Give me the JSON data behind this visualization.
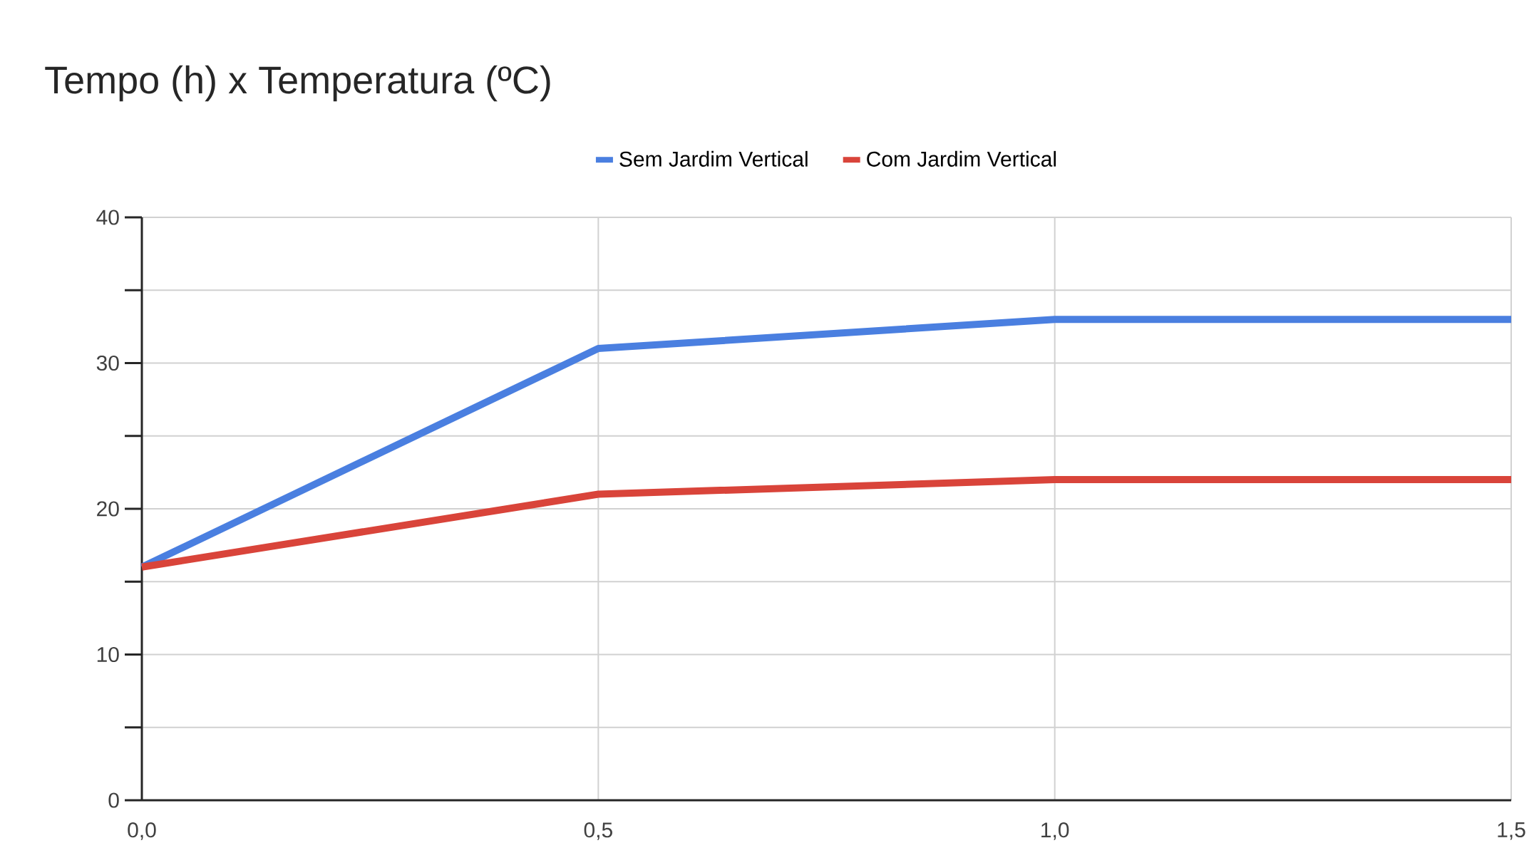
{
  "chart_data": {
    "type": "line",
    "title": "Tempo (h) x Temperatura (ºC)",
    "x": [
      0,
      0.5,
      1.0,
      1.5
    ],
    "series": [
      {
        "name": "Sem Jardim Vertical",
        "color": "#4a7fe0",
        "values": [
          16,
          31,
          33,
          33
        ]
      },
      {
        "name": "Com Jardim Vertical",
        "color": "#d9443a",
        "values": [
          16,
          21,
          22,
          22
        ]
      }
    ],
    "xlim": [
      0,
      1.5
    ],
    "xticks": [
      {
        "value": 0,
        "label": "0,0"
      },
      {
        "value": 0.5,
        "label": "0,5"
      },
      {
        "value": 1.0,
        "label": "1,0"
      },
      {
        "value": 1.5,
        "label": "1,5"
      }
    ],
    "ylim": [
      0,
      40
    ],
    "yticks": [
      0,
      {
        "value": 5,
        "label": null
      },
      10,
      {
        "value": 15,
        "label": null
      },
      20,
      {
        "value": 25,
        "label": null
      },
      30,
      {
        "value": 35,
        "label": null
      },
      40
    ],
    "grid": true,
    "legend": "top",
    "marker": "none",
    "line_style": "solid"
  }
}
